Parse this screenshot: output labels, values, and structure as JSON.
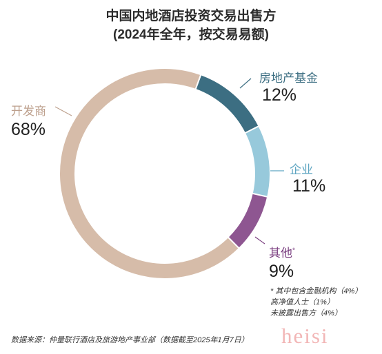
{
  "chart_data": {
    "type": "pie",
    "title": "中国内地酒店投资交易出售方",
    "subtitle": "(2024年全年，按交易易额)",
    "slices": [
      {
        "label": "房地产基金",
        "value": 12,
        "display": "12%",
        "color": "#3c6e82",
        "label_color": "#3c6e82"
      },
      {
        "label": "企业",
        "value": 11,
        "display": "11%",
        "color": "#97c9db",
        "label_color": "#5fa6c2"
      },
      {
        "label": "其他",
        "marker": "*",
        "value": 9,
        "display": "9%",
        "color": "#8e5691",
        "label_color": "#7b3f80"
      },
      {
        "label": "开发商",
        "value": 68,
        "display": "68%",
        "color": "#d6bca9",
        "label_color": "#bda08d"
      }
    ]
  },
  "notes": [
    "* 其中包含金融机构（4%）",
    "高净值人士（1%）",
    "未披露出售方（4%）"
  ],
  "source": "数据来源：仲量联行酒店及旅游地产事业部（数据截至2025年1月7日）",
  "watermark": "heisi"
}
